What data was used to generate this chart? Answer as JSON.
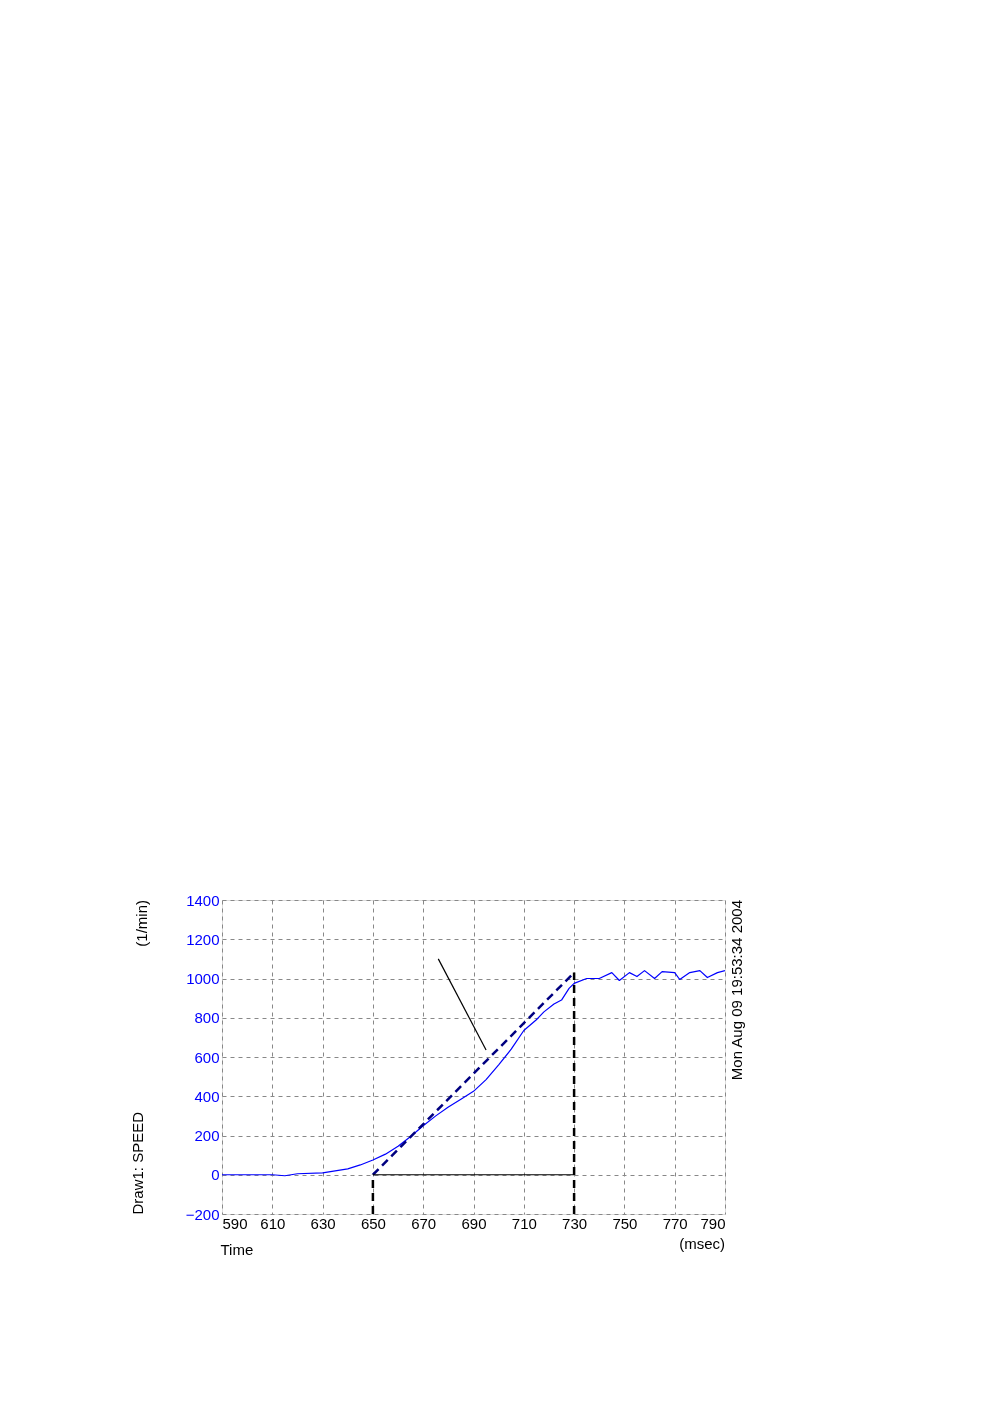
{
  "chart_data": {
    "type": "line",
    "xlabel": "Time",
    "ylabel": "Draw1: SPEED",
    "annotations": [
      "(1/min)",
      "Mon Aug 09 19:53:34 2004",
      "(msec)"
    ],
    "xlim": [
      590,
      790
    ],
    "xticks": [
      590,
      610,
      630,
      650,
      670,
      690,
      710,
      730,
      750,
      770,
      790
    ],
    "ylim": [
      -200,
      1400
    ],
    "yticks": [
      -200,
      0,
      200,
      400,
      600,
      800,
      1000,
      1200,
      1400
    ],
    "grid": true,
    "marker": "none",
    "series": [
      {
        "color": "#0000ff",
        "line_style": "solid",
        "x": [
          590,
          600,
          610,
          615,
          620,
          630,
          640,
          645,
          650,
          655,
          660,
          665,
          670,
          675,
          680,
          685,
          690,
          695,
          700,
          705,
          710,
          715,
          718,
          722,
          725,
          728,
          730,
          735,
          740,
          745,
          748,
          752,
          755,
          758,
          762,
          765,
          770,
          772,
          776,
          780,
          783,
          787,
          790
        ],
        "values": [
          0,
          0,
          0,
          -5,
          5,
          10,
          30,
          50,
          75,
          105,
          145,
          195,
          250,
          300,
          345,
          385,
          425,
          485,
          560,
          640,
          735,
          790,
          830,
          870,
          890,
          950,
          975,
          1000,
          1000,
          1030,
          990,
          1030,
          1010,
          1040,
          1000,
          1035,
          1030,
          995,
          1030,
          1040,
          1005,
          1030,
          1040
        ]
      },
      {
        "color": "#000080",
        "line_style": "dashed",
        "x": [
          650,
          730
        ],
        "values": [
          0,
          1030
        ]
      },
      {
        "color": "#000000",
        "line_style": "dashed",
        "x": [
          650,
          650
        ],
        "values": [
          -200,
          0
        ]
      },
      {
        "color": "#000000",
        "line_style": "dashed",
        "x": [
          730,
          730
        ],
        "values": [
          -200,
          1030
        ]
      },
      {
        "color": "#000000",
        "line_style": "solid",
        "x": [
          650,
          730
        ],
        "values": [
          0,
          0
        ]
      },
      {
        "color": "#000000",
        "line_style": "solid",
        "x": [
          676,
          695
        ],
        "values": [
          1100,
          636
        ]
      }
    ]
  }
}
